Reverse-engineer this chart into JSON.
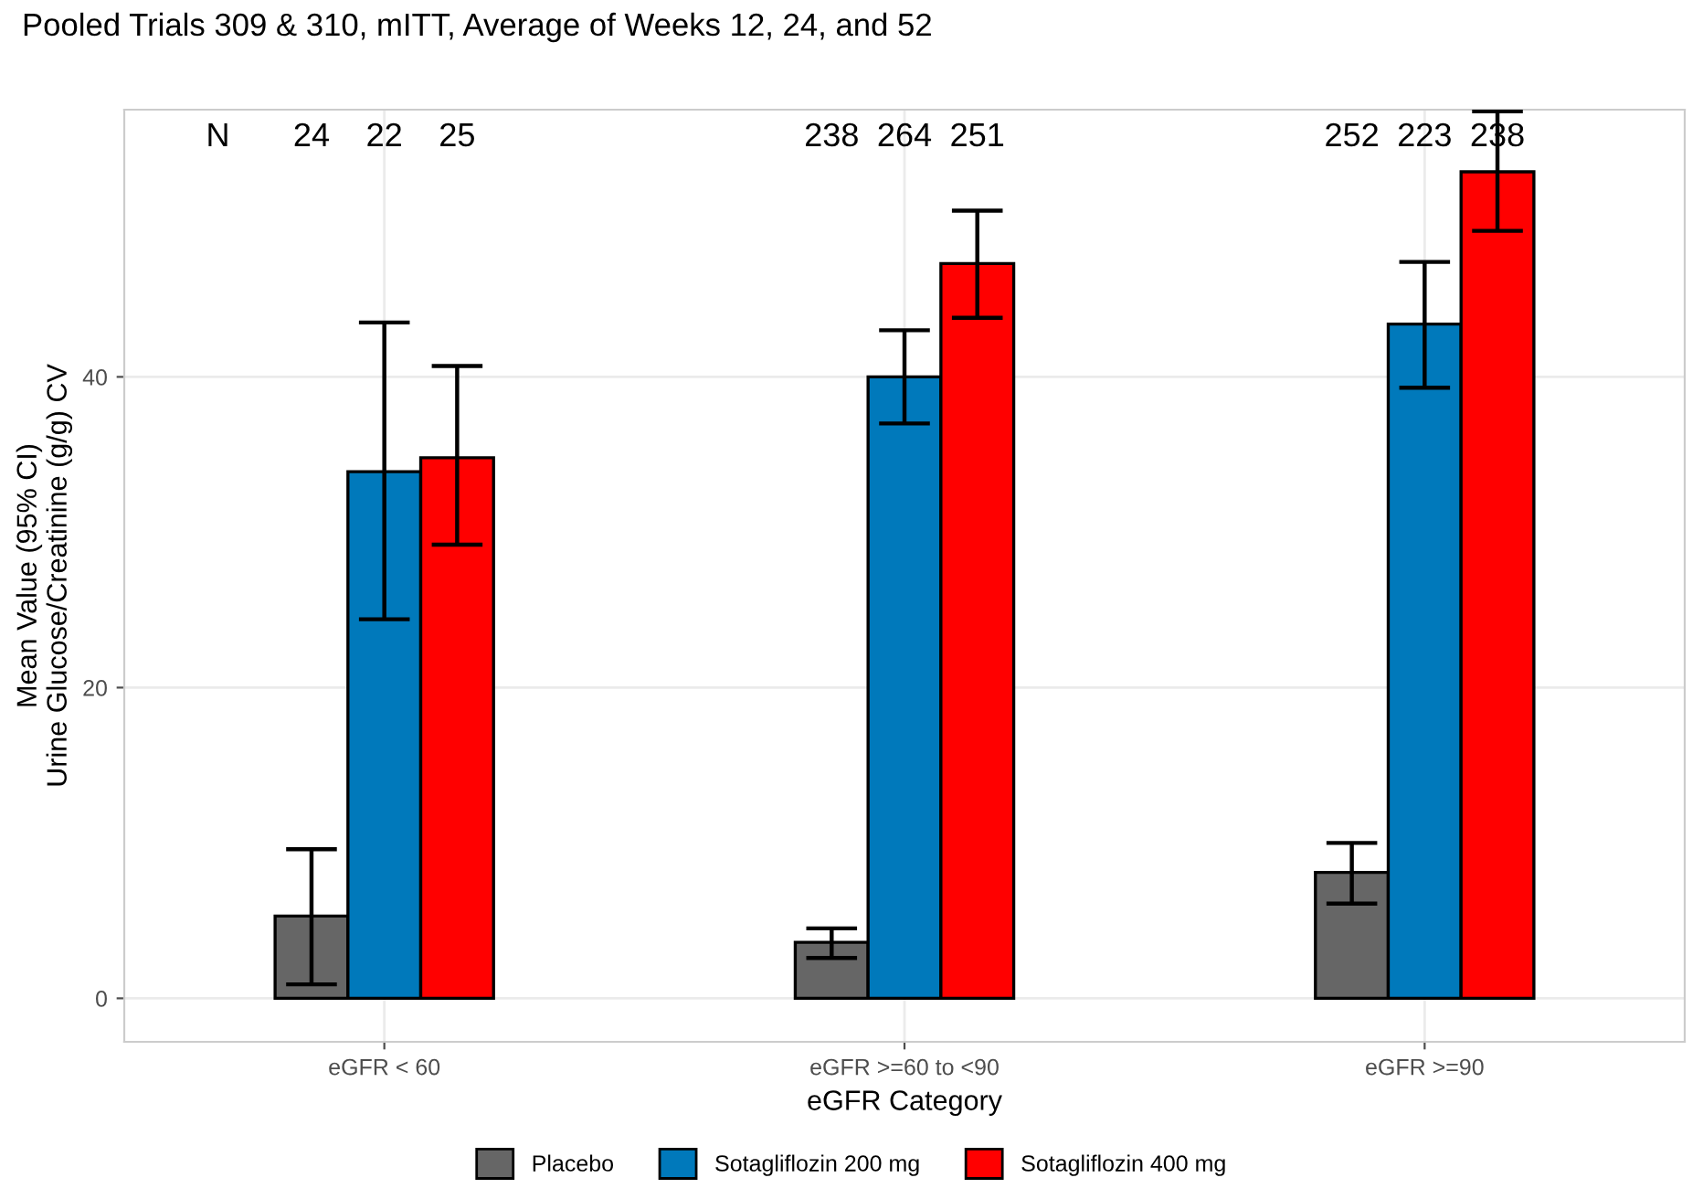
{
  "chart_data": {
    "type": "bar",
    "title": "Pooled Trials 309 & 310, mITT, Average of Weeks 12, 24, and 52",
    "xlabel": "eGFR Category",
    "ylabel": "Mean Value (95% CI)\nUrine Glucose/Creatinine (g/g) CV",
    "categories": [
      "eGFR < 60",
      "eGFR >=60 to <90",
      "eGFR >=90"
    ],
    "series": [
      {
        "name": "Placebo",
        "color": "#666666",
        "values": [
          5.3,
          3.6,
          8.1
        ],
        "errors": [
          [
            0.9,
            9.6
          ],
          [
            2.6,
            4.5
          ],
          [
            6.1,
            10.0
          ]
        ]
      },
      {
        "name": "Sotagliflozin 200 mg",
        "color": "#0079bb",
        "values": [
          33.9,
          40.0,
          43.4
        ],
        "errors": [
          [
            24.4,
            43.5
          ],
          [
            37.0,
            43.0
          ],
          [
            39.3,
            47.4
          ]
        ]
      },
      {
        "name": "Sotagliflozin 400 mg",
        "color": "#ff0000",
        "values": [
          34.8,
          47.3,
          53.2
        ],
        "errors": [
          [
            29.2,
            40.7
          ],
          [
            43.8,
            50.7
          ],
          [
            49.4,
            57.1
          ]
        ]
      }
    ],
    "annotations": [
      "N",
      "24",
      "22",
      "25",
      "238",
      "264",
      "251",
      "252",
      "223",
      "238"
    ],
    "ylim": [
      -2.8,
      57.2
    ],
    "yticks": [
      0,
      20,
      40
    ],
    "grid": true,
    "legend": "bottom"
  }
}
